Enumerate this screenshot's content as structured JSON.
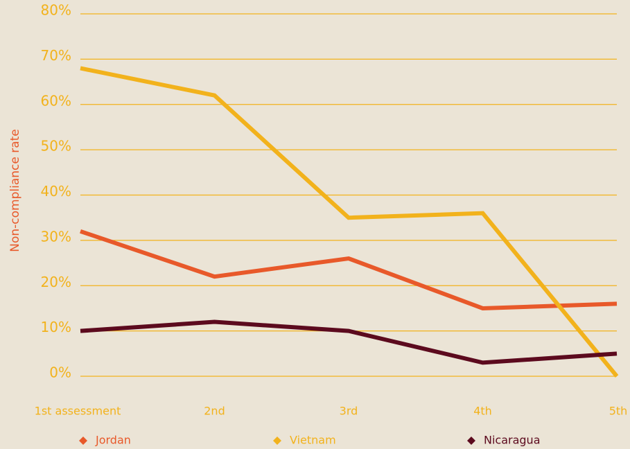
{
  "chart_data": {
    "type": "line",
    "y_label": "Non-compliance rate",
    "categories": [
      "1st assessment",
      "2nd",
      "3rd",
      "4th",
      "5th"
    ],
    "series": [
      {
        "name": "Jordan",
        "color": "#e8592a",
        "values": [
          32,
          22,
          26,
          15,
          16
        ]
      },
      {
        "name": "Vietnam",
        "color": "#f2b21c",
        "values": [
          68,
          62,
          35,
          36,
          0
        ]
      },
      {
        "name": "Nicaragua",
        "color": "#5c0a1e",
        "values": [
          10,
          12,
          10,
          3,
          5
        ]
      }
    ],
    "ylim": [
      0,
      80
    ],
    "yticks": [
      {
        "value": 0,
        "label": "0%"
      },
      {
        "value": 10,
        "label": "10%"
      },
      {
        "value": 20,
        "label": "20%"
      },
      {
        "value": 30,
        "label": "30%"
      },
      {
        "value": 40,
        "label": "40%"
      },
      {
        "value": 50,
        "label": "50%"
      },
      {
        "value": 60,
        "label": "60%"
      },
      {
        "value": 70,
        "label": "70%"
      },
      {
        "value": 80,
        "label": "80%"
      }
    ],
    "grid": true,
    "grid_color": "#f2b21c",
    "legend": "bottom"
  }
}
